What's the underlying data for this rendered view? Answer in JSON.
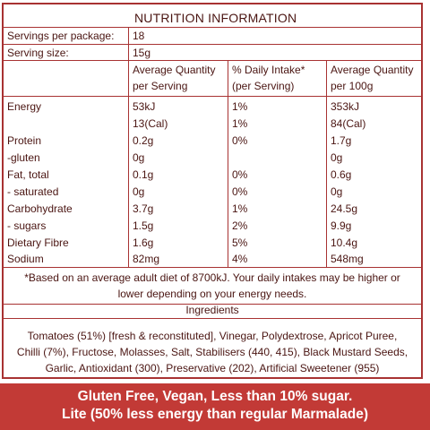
{
  "title": "NUTRITION INFORMATION",
  "servings": {
    "label": "Servings per package:",
    "value": "18"
  },
  "serving_size": {
    "label": "Serving size:",
    "value": "15g"
  },
  "headers": {
    "col1_line1": "Average Quantity",
    "col1_line2": "per Serving",
    "col2_line1": "% Daily Intake*",
    "col2_line2": "(per Serving)",
    "col3_line1": "Average Quantity",
    "col3_line2": "per 100g"
  },
  "rows": [
    {
      "name": "Energy",
      "serving": "53kJ",
      "daily": "1%",
      "per100": "353kJ"
    },
    {
      "name": "",
      "serving": "13(Cal)",
      "daily": "1%",
      "per100": "84(Cal)"
    },
    {
      "name": "Protein",
      "serving": "0.2g",
      "daily": "0%",
      "per100": "1.7g"
    },
    {
      "name": " -gluten",
      "serving": "0g",
      "daily": "",
      "per100": "0g"
    },
    {
      "name": "Fat, total",
      "serving": "0.1g",
      "daily": "0%",
      "per100": "0.6g"
    },
    {
      "name": " - saturated",
      "serving": "0g",
      "daily": "0%",
      "per100": "0g"
    },
    {
      "name": "Carbohydrate",
      "serving": "3.7g",
      "daily": "1%",
      "per100": "24.5g"
    },
    {
      "name": " - sugars",
      "serving": "1.5g",
      "daily": "2%",
      "per100": "9.9g"
    },
    {
      "name": "Dietary Fibre",
      "serving": "1.6g",
      "daily": "5%",
      "per100": "10.4g"
    },
    {
      "name": "Sodium",
      "serving": "82mg",
      "daily": "4%",
      "per100": "548mg"
    }
  ],
  "footnote": {
    "line1": "*Based on an average adult diet of 8700kJ. Your daily intakes may be higher or",
    "line2": "lower depending on your energy needs."
  },
  "ingredients": {
    "heading": "Ingredients",
    "line1": "Tomatoes (51%) [fresh & reconstituted], Vinegar, Polydextrose, Apricot Puree,",
    "line2": "Chilli (7%), Fructose, Molasses, Salt, Stabilisers (440, 415), Black Mustard Seeds,",
    "line3": "Garlic, Antioxidant (300), Preservative (202), Artificial Sweetener (955)"
  },
  "banner": {
    "line1": "Gluten Free, Vegan, Less than 10% sugar.",
    "line2": "Lite (50% less energy than regular Marmalade)"
  },
  "colors": {
    "border": "#a83232",
    "text": "#4a1512",
    "banner_bg": "#c23a36",
    "banner_text": "#ffffff"
  }
}
